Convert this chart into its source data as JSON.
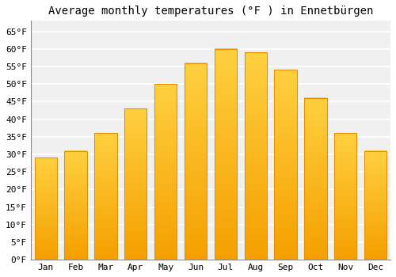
{
  "title": "Average monthly temperatures (°F ) in Ennetbürgen",
  "months": [
    "Jan",
    "Feb",
    "Mar",
    "Apr",
    "May",
    "Jun",
    "Jul",
    "Aug",
    "Sep",
    "Oct",
    "Nov",
    "Dec"
  ],
  "values": [
    29,
    31,
    36,
    43,
    50,
    56,
    60,
    59,
    54,
    46,
    36,
    31
  ],
  "bar_color_top": "#FFD040",
  "bar_color_bottom": "#F5A000",
  "bar_edge_color": "#E89000",
  "background_color": "#FFFFFF",
  "plot_bg_color": "#F0F0F0",
  "grid_color": "#FFFFFF",
  "ylim": [
    0,
    68
  ],
  "yticks": [
    0,
    5,
    10,
    15,
    20,
    25,
    30,
    35,
    40,
    45,
    50,
    55,
    60,
    65
  ],
  "ylabel_suffix": "°F",
  "title_fontsize": 10,
  "tick_fontsize": 8,
  "font_family": "monospace"
}
